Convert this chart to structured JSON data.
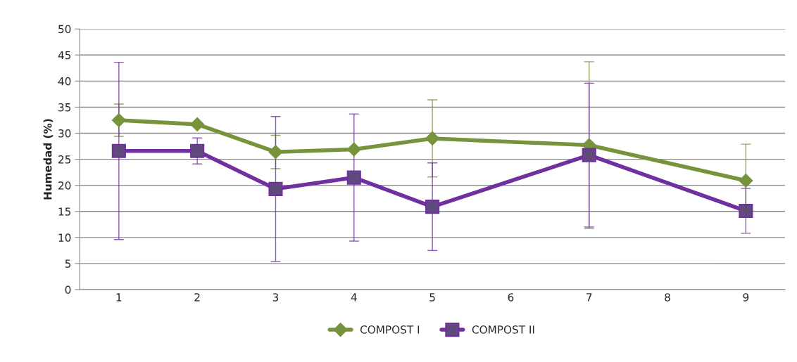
{
  "chart_data": {
    "type": "line",
    "ylabel": "Humedad (%)",
    "categories": [
      "1",
      "2",
      "3",
      "4",
      "5",
      "6",
      "7",
      "8",
      "9"
    ],
    "series": [
      {
        "name": "COMPOST I",
        "color": "#77933c",
        "marker": "diamond",
        "x": [
          "1",
          "2",
          "3",
          "4",
          "5",
          "7",
          "9"
        ],
        "values": [
          32.5,
          31.7,
          26.4,
          26.9,
          29.0,
          27.7,
          20.9
        ],
        "errors": [
          3.1,
          null,
          3.2,
          null,
          7.4,
          16,
          7.0
        ]
      },
      {
        "name": "COMPOST II",
        "color": "#7030a0",
        "marker": "square",
        "x": [
          "1",
          "2",
          "3",
          "4",
          "5",
          "7",
          "9"
        ],
        "values": [
          26.6,
          26.6,
          19.3,
          21.5,
          15.9,
          25.8,
          15.1
        ],
        "errors": [
          17,
          2.5,
          13.9,
          12.2,
          8.4,
          13.8,
          4.3
        ]
      }
    ],
    "ylim": [
      0,
      50
    ],
    "yticks": [
      0,
      5,
      10,
      15,
      20,
      25,
      30,
      35,
      40,
      45,
      50
    ],
    "grid": "y",
    "legend": "bottom",
    "line_style": "solid"
  }
}
